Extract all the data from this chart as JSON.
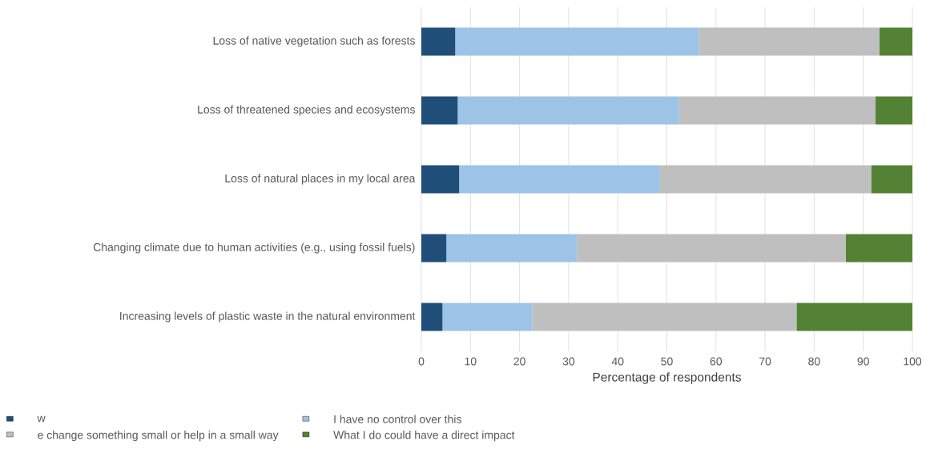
{
  "chart_data": {
    "type": "bar",
    "orientation": "horizontal",
    "stacked": true,
    "xlabel": "Percentage of respondents",
    "categories": [
      "Loss of native vegetation such as forests",
      "Loss of threatened species and ecosystems",
      "Loss of natural places in my local area",
      "Changing climate due to human activities (e.g., using fossil fuels)",
      "Increasing levels of plastic waste in the natural environment"
    ],
    "series": [
      {
        "name": "w",
        "color": "#1f4e79",
        "values": [
          6.9,
          7.4,
          7.7,
          5.1,
          4.3
        ]
      },
      {
        "name": "I have no control over this",
        "color": "#9dc3e6",
        "values": [
          49.6,
          45.1,
          40.9,
          26.6,
          18.3
        ]
      },
      {
        "name": "e change something small or help in a small way",
        "color": "#bfbfbf",
        "values": [
          36.8,
          40.0,
          43.0,
          54.7,
          53.8
        ]
      },
      {
        "name": "What I do could have a direct impact",
        "color": "#548235",
        "values": [
          6.7,
          7.5,
          8.4,
          13.6,
          23.6
        ]
      }
    ],
    "xlim": [
      0,
      100
    ],
    "xticks": [
      0,
      10,
      20,
      30,
      40,
      50,
      60,
      70,
      80,
      90,
      100
    ],
    "grid": "x",
    "legend": "bottom"
  }
}
